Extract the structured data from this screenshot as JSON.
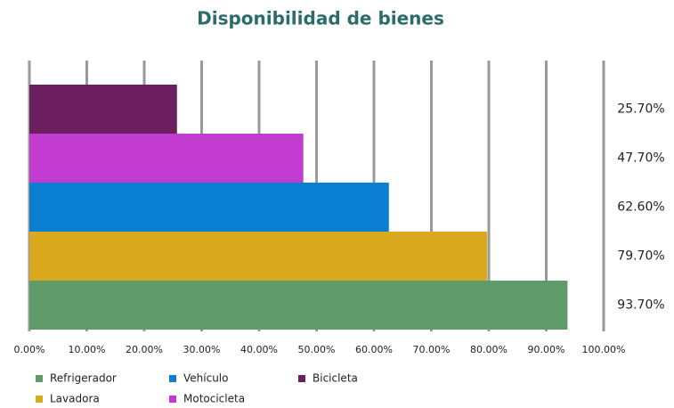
{
  "chart_data": {
    "type": "barh",
    "title": "Disponibilidad de bienes",
    "categories": [
      "Bicicleta",
      "Motocicleta",
      "Vehículo",
      "Lavadora",
      "Refrigerador"
    ],
    "values": [
      25.7,
      47.7,
      62.6,
      79.7,
      93.7
    ],
    "value_labels": [
      "25.70%",
      "47.70%",
      "62.60%",
      "79.70%",
      "93.70%"
    ],
    "colors": [
      "#6b1f5e",
      "#c23ccf",
      "#0a7fd1",
      "#dba91e",
      "#5f9a6b"
    ],
    "xlim": [
      0,
      100
    ],
    "xticks": [
      {
        "value": 0,
        "label": "0.00%"
      },
      {
        "value": 10,
        "label": "10.00%"
      },
      {
        "value": 20,
        "label": "20.00%"
      },
      {
        "value": 30,
        "label": "30.00%"
      },
      {
        "value": 40,
        "label": "40.00%"
      },
      {
        "value": 50,
        "label": "50.00%"
      },
      {
        "value": 60,
        "label": "60.00%"
      },
      {
        "value": 70,
        "label": "70.00%"
      },
      {
        "value": 80,
        "label": "80.00%"
      },
      {
        "value": 90,
        "label": "90.00%"
      },
      {
        "value": 100,
        "label": "100.00%"
      }
    ],
    "grid": true,
    "legend": "bottom"
  }
}
